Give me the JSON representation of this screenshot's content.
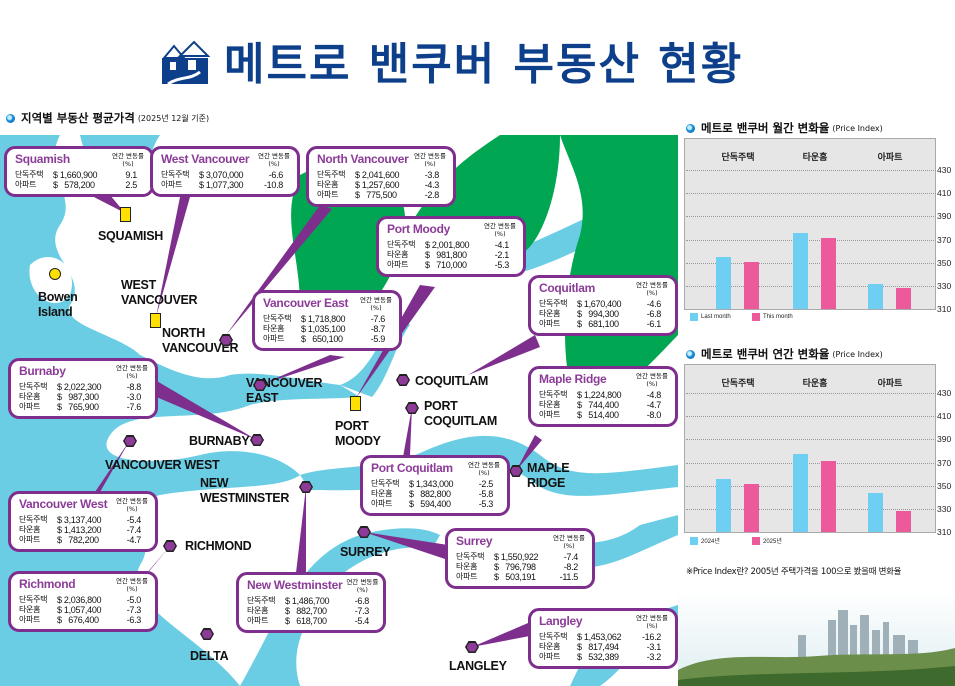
{
  "title": "메트로 밴쿠버 부동산 현황",
  "map_section": {
    "title": "지역별 부동산 평균가격",
    "subtitle": "(2025년 12월 기준)"
  },
  "row_labels": {
    "detached": "단독주택",
    "townhouse": "타운홈",
    "apartment": "아파트"
  },
  "change_header": "연간 변동률(%)",
  "regions": [
    {
      "name": "Squamish",
      "rows": [
        [
          "단독주택",
          "$ 1,660,900",
          "9.1"
        ],
        [
          "아파트",
          "$   578,200",
          "2.5"
        ]
      ]
    },
    {
      "name": "West Vancouver",
      "rows": [
        [
          "단독주택",
          "$ 3,070,000",
          "-6.6"
        ],
        [
          "아파트",
          "$ 1,077,300",
          "-10.8"
        ]
      ]
    },
    {
      "name": "North Vancouver",
      "rows": [
        [
          "단독주택",
          "$ 2,041,600",
          "-3.8"
        ],
        [
          "타운홈",
          "$ 1,257,600",
          "-4.3"
        ],
        [
          "아파트",
          "$   775,500",
          "-2.8"
        ]
      ]
    },
    {
      "name": "Port Moody",
      "rows": [
        [
          "단독주택",
          "$ 2,001,800",
          "-4.1"
        ],
        [
          "타운홈",
          "$   981,800",
          "-2.1"
        ],
        [
          "아파트",
          "$   710,000",
          "-5.3"
        ]
      ]
    },
    {
      "name": "Coquitlam",
      "rows": [
        [
          "단독주택",
          "$ 1,670,400",
          "-4.6"
        ],
        [
          "타운홈",
          "$   994,300",
          "-6.8"
        ],
        [
          "아파트",
          "$   681,100",
          "-6.1"
        ]
      ]
    },
    {
      "name": "Vancouver East",
      "rows": [
        [
          "단독주택",
          "$ 1,718,800",
          "-7.6"
        ],
        [
          "타운홈",
          "$ 1,035,100",
          "-8.7"
        ],
        [
          "아파트",
          "$   650,100",
          "-5.9"
        ]
      ]
    },
    {
      "name": "Burnaby",
      "rows": [
        [
          "단독주택",
          "$ 2,022,300",
          "-8.8"
        ],
        [
          "타운홈",
          "$   987,300",
          "-3.0"
        ],
        [
          "아파트",
          "$   765,900",
          "-7.6"
        ]
      ]
    },
    {
      "name": "Maple Ridge",
      "rows": [
        [
          "단독주택",
          "$ 1,224,800",
          "-4.8"
        ],
        [
          "타운홈",
          "$   744,400",
          "-4.7"
        ],
        [
          "아파트",
          "$   514,400",
          "-8.0"
        ]
      ]
    },
    {
      "name": "Port Coquitlam",
      "rows": [
        [
          "단독주택",
          "$ 1,343,000",
          "-2.5"
        ],
        [
          "타운홈",
          "$   882,800",
          "-5.8"
        ],
        [
          "아파트",
          "$   594,400",
          "-5.3"
        ]
      ]
    },
    {
      "name": "Vancouver West",
      "rows": [
        [
          "단독주택",
          "$ 3,137,400",
          "-5.4"
        ],
        [
          "타운홈",
          "$ 1,413,200",
          "-7.4"
        ],
        [
          "아파트",
          "$   782,200",
          "-4.7"
        ]
      ]
    },
    {
      "name": "Richmond",
      "rows": [
        [
          "단독주택",
          "$ 2,036,800",
          "-5.0"
        ],
        [
          "타운홈",
          "$ 1,057,400",
          "-7.3"
        ],
        [
          "아파트",
          "$   676,400",
          "-6.3"
        ]
      ]
    },
    {
      "name": "New Westminster",
      "rows": [
        [
          "단독주택",
          "$ 1,486,700",
          "-6.8"
        ],
        [
          "타운홈",
          "$   882,700",
          "-7.3"
        ],
        [
          "아파트",
          "$   618,700",
          "-5.4"
        ]
      ]
    },
    {
      "name": "Surrey",
      "rows": [
        [
          "단독주택",
          "$ 1,550,922",
          "-7.4"
        ],
        [
          "타운홈",
          "$   796,798",
          "-8.2"
        ],
        [
          "아파트",
          "$   503,191",
          "-11.5"
        ]
      ]
    },
    {
      "name": "Langley",
      "rows": [
        [
          "단독주택",
          "$ 1,453,062",
          "-16.2"
        ],
        [
          "타운홈",
          "$   817,494",
          "-3.1"
        ],
        [
          "아파트",
          "$   532,389",
          "-3.2"
        ]
      ]
    }
  ],
  "map_labels": [
    "SQUAMISH",
    "Bowen Island",
    "WEST VANCOUVER",
    "NORTH VANCOUVER",
    "VANCOUVER EAST",
    "PORT MOODY",
    "COQUITLAM",
    "PORT COQUITLAM",
    "BURNABY",
    "VANCOUVER WEST",
    "NEW WESTMINSTER",
    "MAPLE RIDGE",
    "RICHMOND",
    "SURREY",
    "DELTA",
    "LANGLEY"
  ],
  "chart_data": [
    {
      "type": "bar",
      "title": "메트로 밴쿠버 월간 변화율",
      "title_note": "(Price Index)",
      "categories": [
        "단독주택",
        "타운홈",
        "아파트"
      ],
      "series": [
        {
          "name": "Last month",
          "values": [
            355,
            376,
            332
          ],
          "color": "#6ecff2"
        },
        {
          "name": "This month",
          "values": [
            351,
            371,
            328
          ],
          "color": "#ec5a9c"
        }
      ],
      "ylim": [
        310,
        430
      ],
      "yticks": [
        310,
        330,
        350,
        370,
        390,
        410,
        430
      ],
      "grid": true,
      "legend": "bottom-left",
      "axis": "right"
    },
    {
      "type": "bar",
      "title": "메트로 밴쿠버 연간 변화율",
      "title_note": "(Price Index)",
      "categories": [
        "단독주택",
        "타운홈",
        "아파트"
      ],
      "series": [
        {
          "name": "2024년",
          "values": [
            356,
            377,
            344
          ],
          "color": "#6ecff2"
        },
        {
          "name": "2025년",
          "values": [
            351.5,
            371.5,
            328
          ],
          "color": "#ec5a9c"
        }
      ],
      "ylim": [
        310,
        430
      ],
      "yticks": [
        310,
        330,
        350,
        370,
        390,
        410,
        430
      ],
      "grid": true,
      "legend": "bottom-left",
      "axis": "right"
    }
  ],
  "note": "※Price Index란? 2005년 주택가격을 100으로 봤을때 변화율"
}
